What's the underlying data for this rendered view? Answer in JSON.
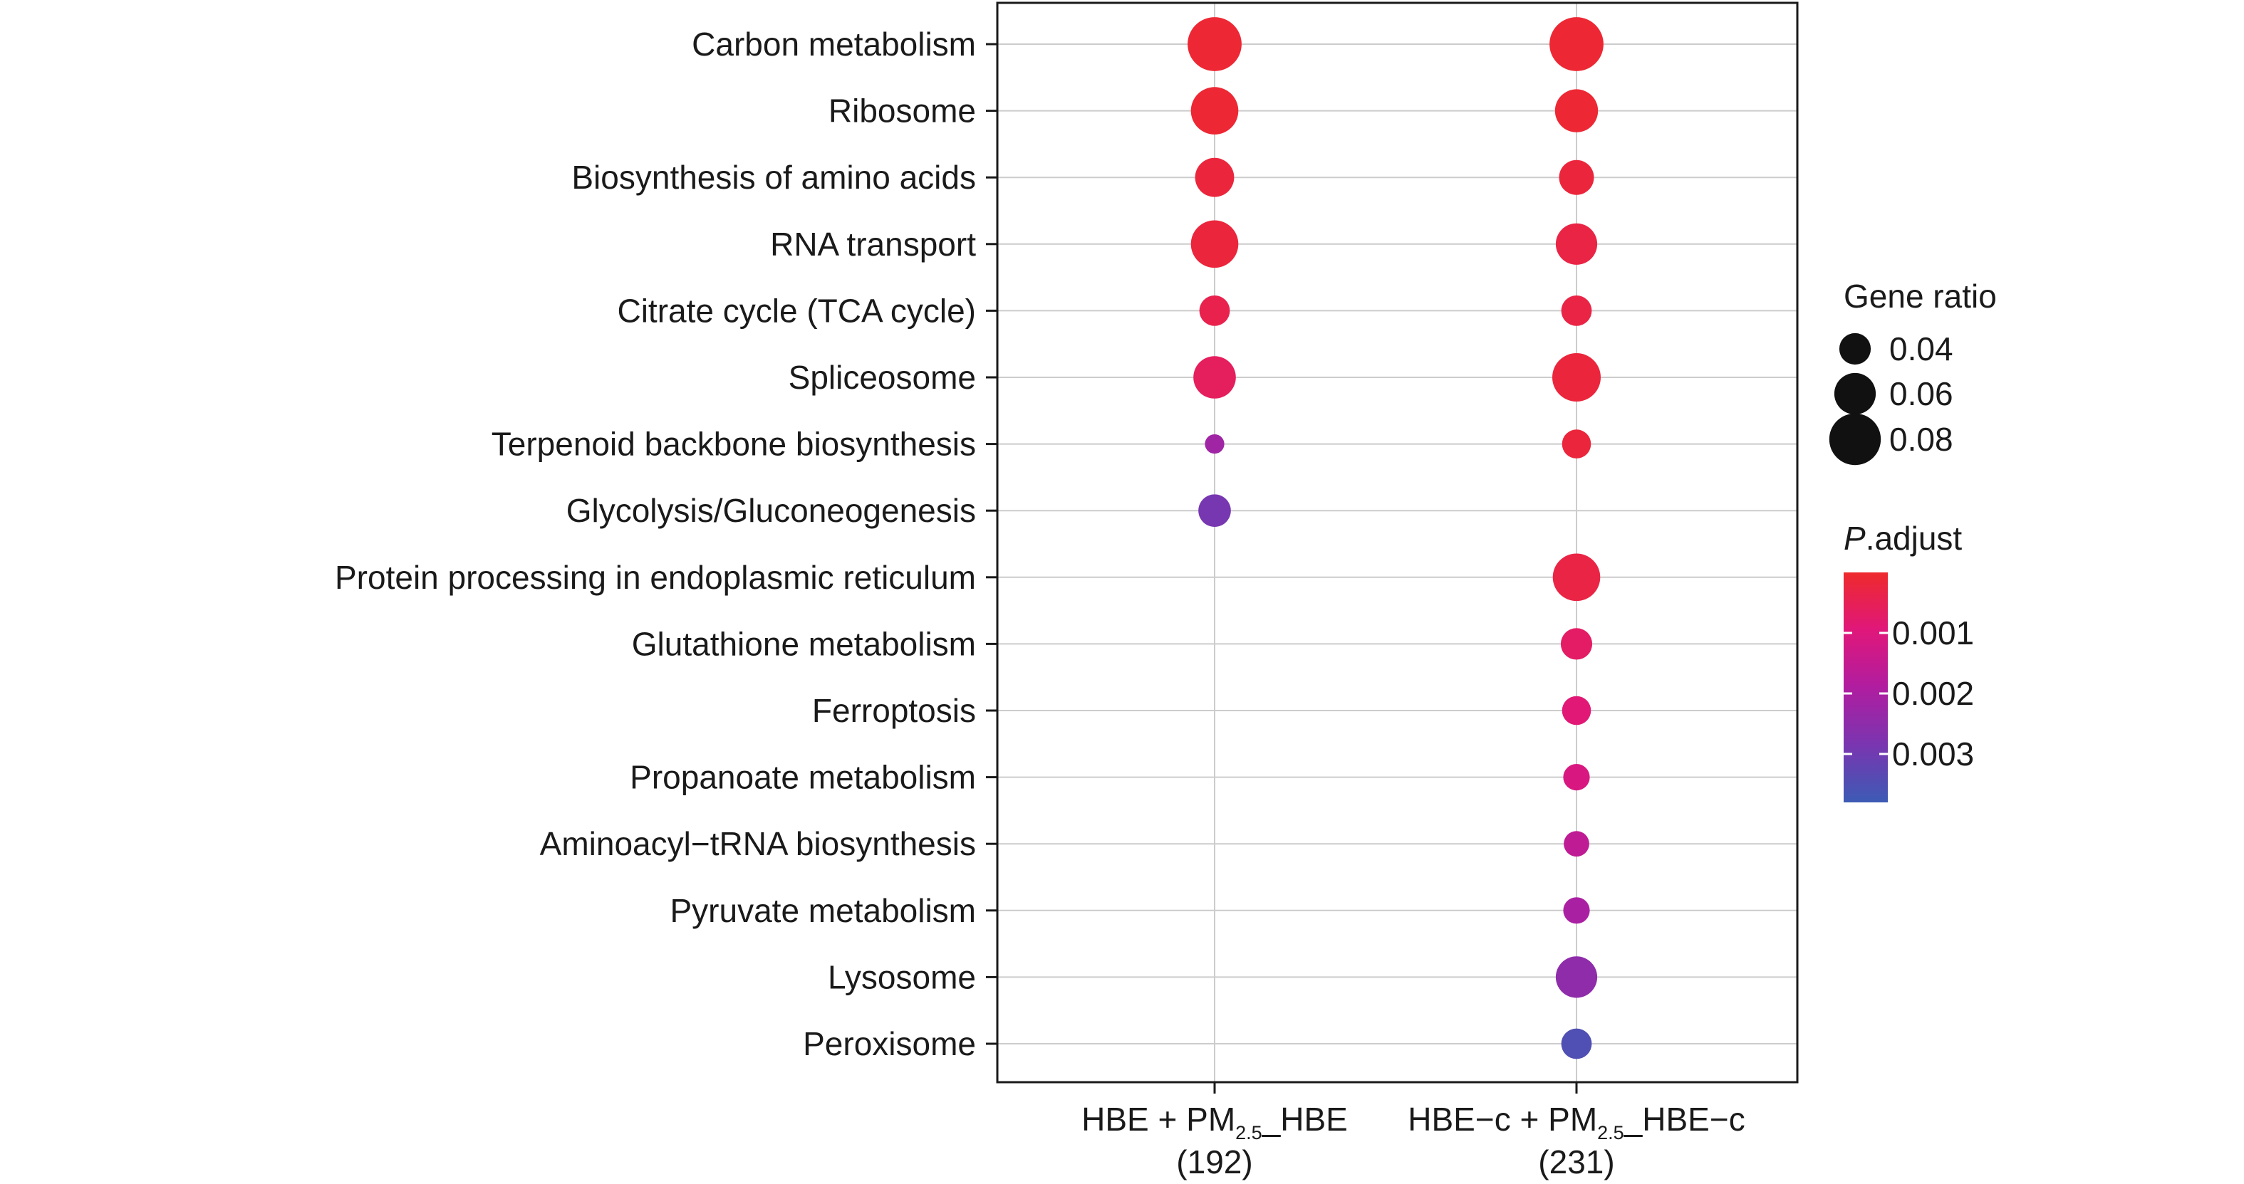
{
  "chart_data": {
    "type": "scatter",
    "title": "",
    "xlabel": "",
    "ylabel": "",
    "categories": [
      "Carbon metabolism",
      "Ribosome",
      "Biosynthesis of amino acids",
      "RNA transport",
      "Citrate cycle (TCA cycle)",
      "Spliceosome",
      "Terpenoid backbone biosynthesis",
      "Glycolysis/Gluconeogenesis",
      "Protein processing in endoplasmic reticulum",
      "Glutathione metabolism",
      "Ferroptosis",
      "Propanoate metabolism",
      "Aminoacyl−tRNA biosynthesis",
      "Pyruvate metabolism",
      "Lysosome",
      "Peroxisome"
    ],
    "groups": [
      {
        "label_main": "HBE + PM",
        "label_sub": "2.5",
        "label_tail": "_HBE",
        "count": "(192)"
      },
      {
        "label_main": "HBE−c + PM",
        "label_sub": "2.5",
        "label_tail": "_HBE−c",
        "count": "(231)"
      }
    ],
    "points": [
      {
        "group": 0,
        "term": 0,
        "gene_ratio": 0.085,
        "p_adjust": 0.0001
      },
      {
        "group": 0,
        "term": 1,
        "gene_ratio": 0.072,
        "p_adjust": 0.0001
      },
      {
        "group": 0,
        "term": 2,
        "gene_ratio": 0.055,
        "p_adjust": 0.0002
      },
      {
        "group": 0,
        "term": 3,
        "gene_ratio": 0.072,
        "p_adjust": 0.0002
      },
      {
        "group": 0,
        "term": 4,
        "gene_ratio": 0.038,
        "p_adjust": 0.0004
      },
      {
        "group": 0,
        "term": 5,
        "gene_ratio": 0.062,
        "p_adjust": 0.0006
      },
      {
        "group": 0,
        "term": 6,
        "gene_ratio": 0.016,
        "p_adjust": 0.0022
      },
      {
        "group": 0,
        "term": 7,
        "gene_ratio": 0.042,
        "p_adjust": 0.0029
      },
      {
        "group": 1,
        "term": 0,
        "gene_ratio": 0.085,
        "p_adjust": 0.0001
      },
      {
        "group": 1,
        "term": 1,
        "gene_ratio": 0.063,
        "p_adjust": 0.0001
      },
      {
        "group": 1,
        "term": 2,
        "gene_ratio": 0.047,
        "p_adjust": 0.0002
      },
      {
        "group": 1,
        "term": 3,
        "gene_ratio": 0.06,
        "p_adjust": 0.0003
      },
      {
        "group": 1,
        "term": 4,
        "gene_ratio": 0.038,
        "p_adjust": 0.0003
      },
      {
        "group": 1,
        "term": 5,
        "gene_ratio": 0.074,
        "p_adjust": 0.0002
      },
      {
        "group": 1,
        "term": 6,
        "gene_ratio": 0.035,
        "p_adjust": 0.0002
      },
      {
        "group": 1,
        "term": 8,
        "gene_ratio": 0.072,
        "p_adjust": 0.0003
      },
      {
        "group": 1,
        "term": 9,
        "gene_ratio": 0.04,
        "p_adjust": 0.0007
      },
      {
        "group": 1,
        "term": 10,
        "gene_ratio": 0.035,
        "p_adjust": 0.0009
      },
      {
        "group": 1,
        "term": 11,
        "gene_ratio": 0.03,
        "p_adjust": 0.0011
      },
      {
        "group": 1,
        "term": 12,
        "gene_ratio": 0.028,
        "p_adjust": 0.0016
      },
      {
        "group": 1,
        "term": 13,
        "gene_ratio": 0.03,
        "p_adjust": 0.002
      },
      {
        "group": 1,
        "term": 14,
        "gene_ratio": 0.06,
        "p_adjust": 0.0025
      },
      {
        "group": 1,
        "term": 15,
        "gene_ratio": 0.038,
        "p_adjust": 0.0035
      }
    ],
    "size_legend": {
      "title": "Gene ratio",
      "values": [
        0.04,
        0.06,
        0.08
      ],
      "labels": [
        "0.04",
        "0.06",
        "0.08"
      ]
    },
    "color_legend": {
      "title_italic": "P",
      "title_rest": ".adjust",
      "range": [
        0.0,
        0.0038
      ],
      "ticks": [
        0.001,
        0.002,
        0.003
      ],
      "tick_labels": [
        "0.001",
        "0.002",
        "0.003"
      ],
      "colors": [
        "#EE2A2C",
        "#E0177A",
        "#B01DA0",
        "#7A35B0",
        "#3C5BB4"
      ]
    },
    "grid": true,
    "legend_position": "right"
  }
}
